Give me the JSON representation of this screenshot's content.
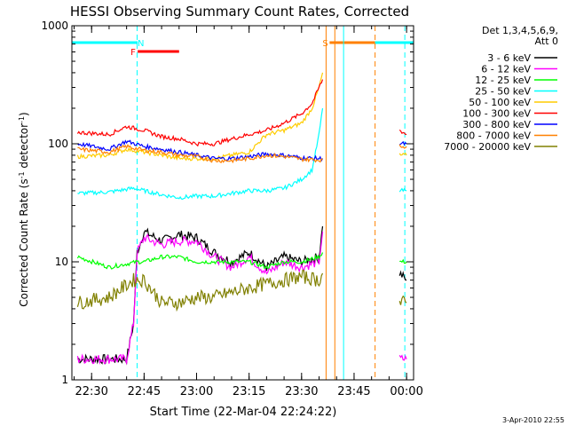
{
  "chart_data": {
    "type": "line",
    "title": "HESSI Observing Summary Count Rates, Corrected",
    "xlabel": "Start Time (22-Mar-04 22:24:22)",
    "ylabel_main": "Corrected Count Rate (s",
    "ylabel_sup1": "-1",
    "ylabel_mid": " detector",
    "ylabel_sup2": "-1",
    "ylabel_end": ")",
    "xlim": [
      "22:24:22",
      "00:02:00"
    ],
    "ylim": [
      1,
      1000
    ],
    "yscale": "log",
    "xticks": [
      "22:30",
      "22:45",
      "23:00",
      "23:15",
      "23:30",
      "23:45",
      "00:00"
    ],
    "yticks": [
      "1",
      "10",
      "100",
      "1000"
    ],
    "legend_header": [
      "Det 1,3,4,5,6,9,",
      "Att 0"
    ],
    "legend_position": "right",
    "footer": "3-Apr-2010 22:55",
    "flags": [
      {
        "label": "N",
        "color": "#00ffff",
        "start": "22:24:22",
        "end": "22:43:10"
      },
      {
        "label": "F",
        "color": "#ff0000",
        "start": "22:43:10",
        "end": "22:55:00"
      },
      {
        "label": "S",
        "color": "#ff8000",
        "start": "23:38:00",
        "end": "23:51:00"
      },
      {
        "label": "",
        "color": "#00ffff",
        "start": "23:51:00",
        "end": "00:02:00"
      }
    ],
    "markers": [
      {
        "time": "22:43:00",
        "color": "#00ffff",
        "style": "dashed"
      },
      {
        "time": "23:37:00",
        "color": "#ff8000",
        "style": "solid"
      },
      {
        "time": "23:39:30",
        "color": "#ff8000",
        "style": "solid"
      },
      {
        "time": "23:42:00",
        "color": "#00ffff",
        "style": "solid"
      },
      {
        "time": "23:51:00",
        "color": "#ff8000",
        "style": "dashed"
      },
      {
        "time": "23:59:30",
        "color": "#00ffff",
        "style": "dashed"
      }
    ],
    "series": [
      {
        "name": "3 - 6 keV",
        "color": "#000000",
        "points": [
          [
            "22:26",
            1.5
          ],
          [
            "22:40",
            1.5
          ],
          [
            "22:42",
            3
          ],
          [
            "22:43",
            12
          ],
          [
            "22:45",
            18
          ],
          [
            "22:50",
            15
          ],
          [
            "22:55",
            17
          ],
          [
            "23:00",
            16
          ],
          [
            "23:05",
            12
          ],
          [
            "23:10",
            10
          ],
          [
            "23:15",
            12
          ],
          [
            "23:20",
            9
          ],
          [
            "23:25",
            11
          ],
          [
            "23:30",
            10
          ],
          [
            "23:35",
            11
          ],
          [
            "23:36",
            20
          ]
        ],
        "points2": [
          [
            "23:58",
            8
          ],
          [
            "00:00",
            7
          ]
        ]
      },
      {
        "name": "6 - 12 keV",
        "color": "#ff00ff",
        "points": [
          [
            "22:26",
            1.5
          ],
          [
            "22:40",
            1.5
          ],
          [
            "22:42",
            3
          ],
          [
            "22:43",
            12
          ],
          [
            "22:45",
            16
          ],
          [
            "22:50",
            14
          ],
          [
            "22:55",
            15
          ],
          [
            "23:00",
            15
          ],
          [
            "23:05",
            11
          ],
          [
            "23:10",
            9
          ],
          [
            "23:15",
            11
          ],
          [
            "23:20",
            8
          ],
          [
            "23:25",
            10
          ],
          [
            "23:30",
            9
          ],
          [
            "23:35",
            10
          ],
          [
            "23:36",
            18
          ]
        ],
        "points2": [
          [
            "23:58",
            1.5
          ],
          [
            "00:00",
            1.5
          ]
        ]
      },
      {
        "name": "12 - 25 keV",
        "color": "#00ff00",
        "points": [
          [
            "22:26",
            11
          ],
          [
            "22:35",
            9
          ],
          [
            "22:43",
            10
          ],
          [
            "22:45",
            10
          ],
          [
            "22:50",
            11
          ],
          [
            "22:55",
            11
          ],
          [
            "23:00",
            10
          ],
          [
            "23:05",
            10
          ],
          [
            "23:10",
            10
          ],
          [
            "23:15",
            10
          ],
          [
            "23:20",
            9
          ],
          [
            "23:25",
            10
          ],
          [
            "23:30",
            10
          ],
          [
            "23:35",
            11
          ],
          [
            "23:36",
            12
          ]
        ],
        "points2": [
          [
            "23:58",
            10
          ],
          [
            "00:00",
            10
          ]
        ]
      },
      {
        "name": "25 - 50 keV",
        "color": "#00ffff",
        "points": [
          [
            "22:26",
            38
          ],
          [
            "22:35",
            39
          ],
          [
            "22:42",
            42
          ],
          [
            "22:50",
            37
          ],
          [
            "22:55",
            35
          ],
          [
            "23:00",
            36
          ],
          [
            "23:05",
            36
          ],
          [
            "23:10",
            38
          ],
          [
            "23:15",
            40
          ],
          [
            "23:20",
            40
          ],
          [
            "23:25",
            42
          ],
          [
            "23:30",
            50
          ],
          [
            "23:33",
            60
          ],
          [
            "23:35",
            120
          ],
          [
            "23:36",
            200
          ]
        ],
        "points2": [
          [
            "23:58",
            40
          ],
          [
            "00:00",
            40
          ]
        ]
      },
      {
        "name": "50 - 100 keV",
        "color": "#ffcc00",
        "points": [
          [
            "22:26",
            78
          ],
          [
            "22:35",
            80
          ],
          [
            "22:40",
            90
          ],
          [
            "22:45",
            85
          ],
          [
            "22:50",
            80
          ],
          [
            "22:55",
            75
          ],
          [
            "23:00",
            75
          ],
          [
            "23:05",
            75
          ],
          [
            "23:10",
            80
          ],
          [
            "23:15",
            85
          ],
          [
            "23:20",
            120
          ],
          [
            "23:25",
            130
          ],
          [
            "23:30",
            150
          ],
          [
            "23:33",
            200
          ],
          [
            "23:35",
            300
          ],
          [
            "23:36",
            400
          ]
        ],
        "points2": [
          [
            "23:58",
            80
          ],
          [
            "00:00",
            80
          ]
        ]
      },
      {
        "name": "100 - 300 keV",
        "color": "#ff0000",
        "points": [
          [
            "22:26",
            125
          ],
          [
            "22:35",
            120
          ],
          [
            "22:40",
            140
          ],
          [
            "22:45",
            130
          ],
          [
            "22:50",
            115
          ],
          [
            "22:55",
            110
          ],
          [
            "23:00",
            100
          ],
          [
            "23:05",
            100
          ],
          [
            "23:10",
            110
          ],
          [
            "23:15",
            120
          ],
          [
            "23:20",
            130
          ],
          [
            "23:25",
            150
          ],
          [
            "23:30",
            180
          ],
          [
            "23:33",
            220
          ],
          [
            "23:35",
            300
          ],
          [
            "23:36",
            350
          ]
        ],
        "points2": [
          [
            "23:58",
            130
          ],
          [
            "00:00",
            120
          ]
        ]
      },
      {
        "name": "300 - 800 keV",
        "color": "#0000ff",
        "points": [
          [
            "22:26",
            100
          ],
          [
            "22:35",
            90
          ],
          [
            "22:40",
            105
          ],
          [
            "22:45",
            95
          ],
          [
            "22:50",
            90
          ],
          [
            "22:55",
            85
          ],
          [
            "23:00",
            80
          ],
          [
            "23:05",
            75
          ],
          [
            "23:10",
            75
          ],
          [
            "23:15",
            78
          ],
          [
            "23:20",
            82
          ],
          [
            "23:25",
            80
          ],
          [
            "23:30",
            76
          ],
          [
            "23:35",
            75
          ],
          [
            "23:36",
            75
          ]
        ],
        "points2": [
          [
            "23:58",
            100
          ],
          [
            "00:00",
            100
          ]
        ]
      },
      {
        "name": "800 - 7000 keV",
        "color": "#ff8000",
        "points": [
          [
            "22:26",
            90
          ],
          [
            "22:35",
            85
          ],
          [
            "22:40",
            95
          ],
          [
            "22:45",
            88
          ],
          [
            "22:50",
            85
          ],
          [
            "22:55",
            80
          ],
          [
            "23:00",
            78
          ],
          [
            "23:05",
            72
          ],
          [
            "23:10",
            72
          ],
          [
            "23:15",
            75
          ],
          [
            "23:20",
            80
          ],
          [
            "23:25",
            78
          ],
          [
            "23:30",
            74
          ],
          [
            "23:35",
            73
          ],
          [
            "23:36",
            73
          ]
        ],
        "points2": [
          [
            "23:58",
            95
          ],
          [
            "00:00",
            95
          ]
        ]
      },
      {
        "name": "7000 - 20000 keV",
        "color": "#808000",
        "points": [
          [
            "22:26",
            4.5
          ],
          [
            "22:35",
            5
          ],
          [
            "22:42",
            7
          ],
          [
            "22:45",
            7
          ],
          [
            "22:50",
            4.5
          ],
          [
            "22:55",
            4.5
          ],
          [
            "23:00",
            5
          ],
          [
            "23:05",
            5
          ],
          [
            "23:10",
            5.5
          ],
          [
            "23:15",
            6
          ],
          [
            "23:20",
            6.5
          ],
          [
            "23:25",
            7
          ],
          [
            "23:30",
            7.5
          ],
          [
            "23:35",
            7
          ],
          [
            "23:36",
            8
          ]
        ],
        "points2": [
          [
            "23:58",
            4.5
          ],
          [
            "00:00",
            4.5
          ]
        ]
      }
    ]
  }
}
